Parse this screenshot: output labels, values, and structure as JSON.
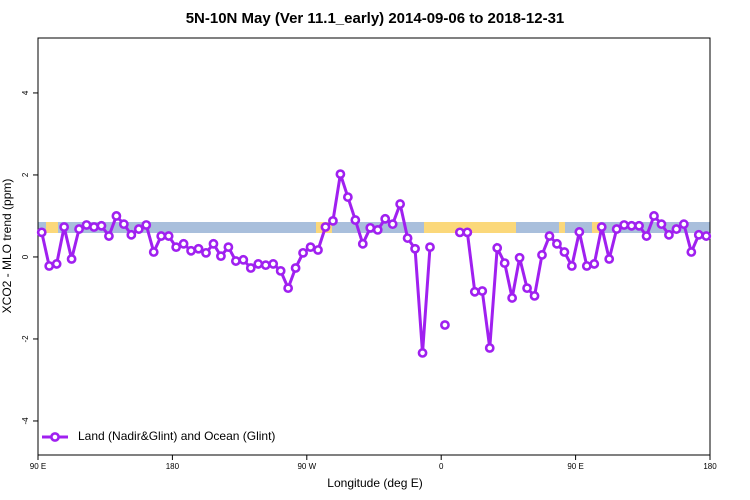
{
  "chart_data": {
    "type": "line",
    "title": "5N-10N May (Ver 11.1_early)   2014-09-06 to 2018-12-31",
    "x_label": "Longitude (deg E)",
    "y_label": "XCO2 - MLO trend (ppm)",
    "x": [
      92.5,
      97.5,
      102.5,
      107.5,
      112.5,
      117.5,
      122.5,
      127.5,
      132.5,
      137.5,
      142.5,
      147.5,
      152.5,
      157.5,
      162.5,
      167.5,
      172.5,
      177.5,
      182.5,
      187.5,
      192.5,
      197.5,
      202.5,
      207.5,
      212.5,
      217.5,
      222.5,
      227.5,
      232.5,
      237.5,
      242.5,
      247.5,
      252.5,
      257.5,
      262.5,
      267.5,
      272.5,
      277.5,
      282.5,
      287.5,
      292.5,
      297.5,
      302.5,
      307.5,
      312.5,
      317.5,
      322.5,
      327.5,
      332.5,
      337.5,
      342.5,
      347.5,
      352.5,
      357.5,
      362.5,
      367.5,
      372.5,
      377.5,
      382.5,
      387.5,
      392.5,
      397.5,
      402.5,
      407.5,
      412.5,
      417.5,
      422.5,
      427.5,
      432.5,
      437.5,
      442.5,
      447.5,
      452.5,
      457.5,
      462.5,
      467.5,
      472.5,
      477.5,
      482.5,
      487.5,
      492.5,
      497.5,
      502.5,
      507.5,
      512.5,
      517.5,
      522.5,
      527.5,
      532.5,
      537.5
    ],
    "series": [
      {
        "name": "Land (Nadir&Glint) and Ocean (Glint)",
        "color": "#a020f0",
        "values": [
          0.6,
          -0.22,
          -0.17,
          0.73,
          -0.05,
          0.68,
          0.78,
          0.73,
          0.76,
          0.51,
          1.0,
          0.8,
          0.54,
          0.68,
          0.78,
          0.12,
          0.51,
          0.51,
          0.24,
          0.32,
          0.15,
          0.2,
          0.1,
          0.32,
          0.02,
          0.24,
          -0.1,
          -0.07,
          -0.27,
          -0.17,
          -0.2,
          -0.17,
          -0.34,
          -0.76,
          -0.27,
          0.1,
          0.24,
          0.17,
          0.73,
          0.88,
          2.02,
          1.46,
          0.9,
          0.32,
          0.71,
          0.66,
          0.93,
          0.8,
          1.29,
          0.46,
          0.2,
          -2.34,
          0.24,
          null,
          -1.66,
          null,
          0.6,
          0.6,
          -0.85,
          -0.83,
          -2.22,
          0.22,
          -0.15,
          -1.0,
          -0.02,
          -0.76,
          -0.95,
          0.05,
          0.51,
          0.32,
          0.12,
          -0.22,
          0.61,
          -0.22,
          -0.17,
          0.73,
          -0.05,
          0.68,
          0.78,
          0.76,
          0.76,
          0.51,
          1.0,
          0.8,
          0.54,
          0.68,
          0.8,
          0.12,
          0.54,
          0.51
        ]
      }
    ],
    "xlim": [
      90,
      540
    ],
    "xticks": [
      {
        "value": 90,
        "label": "90 E"
      },
      180,
      {
        "value": 270,
        "label": "90 W"
      },
      {
        "value": 360,
        "label": "0"
      },
      {
        "value": 450,
        "label": "90 E"
      },
      {
        "value": 540,
        "label": "180"
      }
    ],
    "ylim": [
      -4.83,
      5.34
    ],
    "yticks": [
      -4,
      -2,
      0,
      2,
      4
    ],
    "legend": "bottomleft"
  }
}
